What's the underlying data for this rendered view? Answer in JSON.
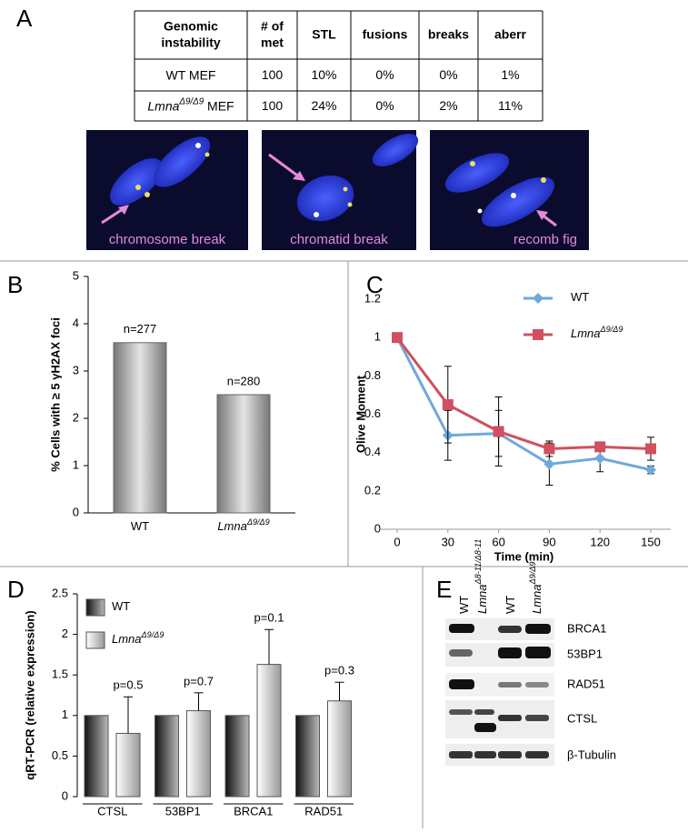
{
  "panel_labels": [
    "A",
    "B",
    "C",
    "D",
    "E"
  ],
  "table": {
    "header": [
      [
        "Genomic",
        "instability"
      ],
      [
        "# of",
        "met"
      ],
      "STL",
      "fusions",
      "breaks",
      "aberr"
    ],
    "rows": [
      {
        "label": {
          "text": "WT MEF"
        },
        "cells": [
          100,
          "10%",
          "0%",
          "0%",
          "1%"
        ]
      },
      {
        "label": {
          "text": "Lmna",
          "sup": "Δ9/Δ9",
          "after": " MEF"
        },
        "cells": [
          100,
          "24%",
          "0%",
          "2%",
          "11%"
        ]
      }
    ]
  },
  "images": [
    {
      "caption": "chromosome break"
    },
    {
      "caption": "chromatid break"
    },
    {
      "caption": "recomb fig"
    }
  ],
  "chart_data": [
    {
      "type": "bar",
      "ylabel": "% Cells with ≥ 5 γH2AX foci",
      "categories": [
        {
          "text": "WT"
        },
        {
          "text": "Lmna",
          "sup": "Δ9/Δ9"
        }
      ],
      "values": [
        3.6,
        2.5
      ],
      "annotations": [
        "n=277",
        "n=280"
      ],
      "ylim": [
        0,
        5
      ],
      "yticks": [
        0,
        1,
        2,
        3,
        4,
        5
      ]
    },
    {
      "type": "line",
      "ylabel": "Olive Moment",
      "xlabel": "Time (min)",
      "x": [
        0,
        30,
        60,
        90,
        120,
        150
      ],
      "xlim": [
        0,
        150
      ],
      "xticks": [
        0,
        30,
        60,
        90,
        120,
        150
      ],
      "ylim": [
        0,
        1.2
      ],
      "yticks": [
        0,
        0.2,
        0.4,
        0.6,
        0.8,
        1,
        1.2
      ],
      "series": [
        {
          "name": {
            "text": "WT"
          },
          "color": "#6fa8dc",
          "marker": "diamond",
          "values": [
            1,
            0.49,
            0.5,
            0.34,
            0.37,
            0.31
          ],
          "errors": [
            0,
            0.13,
            0.12,
            0.11,
            0.07,
            0.02
          ]
        },
        {
          "name": {
            "text": "Lmna",
            "sup": "Δ9/Δ9"
          },
          "color": "#d0505f",
          "marker": "square",
          "values": [
            1,
            0.65,
            0.51,
            0.42,
            0.43,
            0.42
          ],
          "errors": [
            0,
            0.2,
            0.18,
            0.04,
            0.02,
            0.06
          ]
        }
      ]
    },
    {
      "type": "grouped_bar",
      "ylabel": "qRT-PCR (relative expression)",
      "categories": [
        "CTSL",
        "53BP1",
        "BRCA1",
        "RAD51"
      ],
      "ylim": [
        0,
        2.5
      ],
      "yticks": [
        0,
        0.5,
        1,
        1.5,
        2,
        2.5
      ],
      "series": [
        {
          "name": {
            "text": "WT"
          },
          "color": "#333333",
          "values": [
            1,
            1,
            1,
            1
          ]
        },
        {
          "name": {
            "text": "Lmna",
            "sup": "Δ9/Δ9"
          },
          "color": "#ffffff",
          "values": [
            0.78,
            1.06,
            1.63,
            1.18
          ],
          "errors": [
            0.45,
            0.22,
            0.43,
            0.23
          ],
          "annotations": [
            "p=0.5",
            "p=0.7",
            "p=0.1",
            "p=0.3"
          ]
        }
      ]
    }
  ],
  "blot": {
    "lanes": [
      {
        "text": "WT"
      },
      {
        "text": "Lmna",
        "sup": "Δ8-11/Δ8-11"
      },
      {
        "text": "WT"
      },
      {
        "text": "Lmna",
        "sup": "Δ9/Δ9"
      }
    ],
    "rows": [
      "BRCA1",
      "53BP1",
      "RAD51",
      "CTSL",
      "β-Tubulin"
    ]
  }
}
